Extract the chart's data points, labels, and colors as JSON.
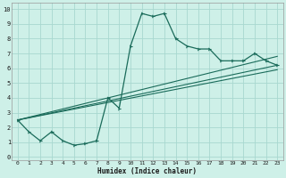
{
  "xlabel": "Humidex (Indice chaleur)",
  "bg_color": "#cef0e8",
  "grid_color": "#a8d8d0",
  "line_color": "#1a6b5a",
  "x_ticks": [
    0,
    1,
    2,
    3,
    4,
    5,
    6,
    7,
    8,
    9,
    10,
    11,
    12,
    13,
    14,
    15,
    16,
    17,
    18,
    19,
    20,
    21,
    22,
    23
  ],
  "y_ticks": [
    0,
    1,
    2,
    3,
    4,
    5,
    6,
    7,
    8,
    9,
    10
  ],
  "ylim": [
    -0.2,
    10.4
  ],
  "xlim": [
    -0.5,
    23.5
  ],
  "curve1_x": [
    0,
    1,
    2,
    3,
    4,
    5,
    6,
    7,
    8,
    9,
    10,
    11,
    12,
    13,
    14,
    15,
    16,
    17,
    18,
    19,
    20,
    21,
    22,
    23
  ],
  "curve1_y": [
    2.5,
    1.7,
    1.1,
    1.7,
    1.1,
    0.8,
    0.9,
    1.1,
    4.0,
    3.3,
    7.5,
    9.7,
    9.5,
    9.7,
    8.0,
    7.5,
    7.3,
    7.3,
    6.5,
    6.5,
    6.5,
    7.0,
    6.5,
    6.2
  ],
  "line2_x": [
    0,
    23
  ],
  "line2_y": [
    2.5,
    6.8
  ],
  "line3_x": [
    0,
    23
  ],
  "line3_y": [
    2.5,
    6.2
  ],
  "line4_x": [
    0,
    23
  ],
  "line4_y": [
    2.5,
    5.9
  ]
}
